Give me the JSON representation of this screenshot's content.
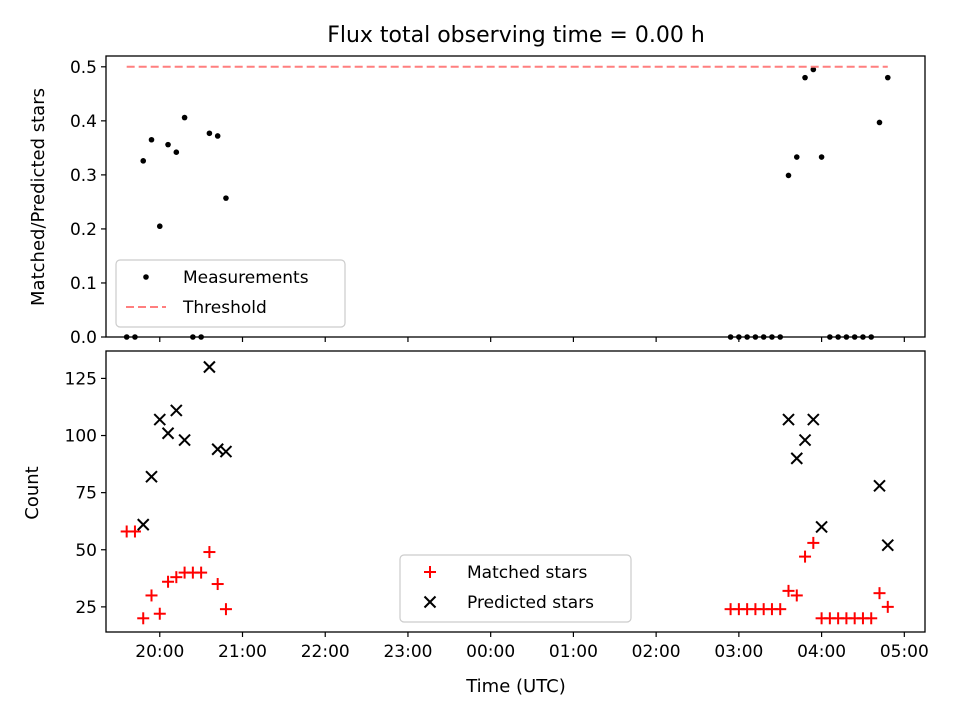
{
  "chart_data": [
    {
      "type": "scatter",
      "title": "Flux total observing time = 0.00 h",
      "xlabel": "",
      "ylabel": "Matched/Predicted stars",
      "ylim": [
        0,
        0.52
      ],
      "yticks": [
        0.0,
        0.1,
        0.2,
        0.3,
        0.4,
        0.5
      ],
      "ytick_labels": [
        "0.0",
        "0.1",
        "0.2",
        "0.3",
        "0.4",
        "0.5"
      ],
      "xlim": [
        "19:21",
        "05:15"
      ],
      "legend_position": "lower-left",
      "series": [
        {
          "name": "Measurements",
          "marker": "dot",
          "color": "#000000",
          "points": [
            [
              "19:36",
              0.0
            ],
            [
              "19:42",
              0.0
            ],
            [
              "19:48",
              0.326
            ],
            [
              "19:54",
              0.365
            ],
            [
              "20:00",
              0.205
            ],
            [
              "20:06",
              0.356
            ],
            [
              "20:12",
              0.342
            ],
            [
              "20:18",
              0.406
            ],
            [
              "20:24",
              0.0
            ],
            [
              "20:30",
              0.0
            ],
            [
              "20:36",
              0.377
            ],
            [
              "20:42",
              0.372
            ],
            [
              "20:48",
              0.257
            ],
            [
              "02:54",
              0.0
            ],
            [
              "03:00",
              0.0
            ],
            [
              "03:06",
              0.0
            ],
            [
              "03:12",
              0.0
            ],
            [
              "03:18",
              0.0
            ],
            [
              "03:24",
              0.0
            ],
            [
              "03:30",
              0.0
            ],
            [
              "03:36",
              0.299
            ],
            [
              "03:42",
              0.333
            ],
            [
              "03:48",
              0.48
            ],
            [
              "03:54",
              0.495
            ],
            [
              "04:00",
              0.333
            ],
            [
              "04:06",
              0.0
            ],
            [
              "04:12",
              0.0
            ],
            [
              "04:18",
              0.0
            ],
            [
              "04:24",
              0.0
            ],
            [
              "04:30",
              0.0
            ],
            [
              "04:36",
              0.0
            ],
            [
              "04:42",
              0.397
            ],
            [
              "04:48",
              0.48
            ]
          ]
        },
        {
          "name": "Threshold",
          "marker": "dashed-line",
          "color": "#ff7f7f",
          "points": [
            [
              "19:36",
              0.5
            ],
            [
              "04:48",
              0.5
            ]
          ]
        }
      ]
    },
    {
      "type": "scatter",
      "title": "",
      "xlabel": "Time (UTC)",
      "ylabel": "Count",
      "ylim": [
        14,
        137
      ],
      "yticks": [
        25,
        50,
        75,
        100,
        125
      ],
      "ytick_labels": [
        "25",
        "50",
        "75",
        "100",
        "125"
      ],
      "xlim": [
        "19:21",
        "05:15"
      ],
      "xticks": [
        "20:00",
        "21:00",
        "22:00",
        "23:00",
        "00:00",
        "01:00",
        "02:00",
        "03:00",
        "04:00",
        "05:00"
      ],
      "xtick_labels": [
        "20:00",
        "21:00",
        "22:00",
        "23:00",
        "00:00",
        "01:00",
        "02:00",
        "03:00",
        "04:00",
        "05:00"
      ],
      "legend_position": "lower-center",
      "series": [
        {
          "name": "Matched stars",
          "marker": "plus",
          "color": "#ff0000",
          "points": [
            [
              "19:36",
              58
            ],
            [
              "19:42",
              58
            ],
            [
              "19:48",
              20
            ],
            [
              "19:54",
              30
            ],
            [
              "20:00",
              22
            ],
            [
              "20:06",
              36
            ],
            [
              "20:12",
              38
            ],
            [
              "20:18",
              40
            ],
            [
              "20:24",
              40
            ],
            [
              "20:30",
              40
            ],
            [
              "20:36",
              49
            ],
            [
              "20:42",
              35
            ],
            [
              "20:48",
              24
            ],
            [
              "02:54",
              24
            ],
            [
              "03:00",
              24
            ],
            [
              "03:06",
              24
            ],
            [
              "03:12",
              24
            ],
            [
              "03:18",
              24
            ],
            [
              "03:24",
              24
            ],
            [
              "03:30",
              24
            ],
            [
              "03:36",
              32
            ],
            [
              "03:42",
              30
            ],
            [
              "03:48",
              47
            ],
            [
              "03:54",
              53
            ],
            [
              "04:00",
              20
            ],
            [
              "04:06",
              20
            ],
            [
              "04:12",
              20
            ],
            [
              "04:18",
              20
            ],
            [
              "04:24",
              20
            ],
            [
              "04:30",
              20
            ],
            [
              "04:36",
              20
            ],
            [
              "04:42",
              31
            ],
            [
              "04:48",
              25
            ]
          ]
        },
        {
          "name": "Predicted stars",
          "marker": "x",
          "color": "#000000",
          "points": [
            [
              "19:48",
              61
            ],
            [
              "19:54",
              82
            ],
            [
              "20:00",
              107
            ],
            [
              "20:06",
              101
            ],
            [
              "20:12",
              111
            ],
            [
              "20:18",
              98
            ],
            [
              "20:36",
              130
            ],
            [
              "20:42",
              94
            ],
            [
              "20:48",
              93
            ],
            [
              "03:36",
              107
            ],
            [
              "03:42",
              90
            ],
            [
              "03:48",
              98
            ],
            [
              "03:54",
              107
            ],
            [
              "04:00",
              60
            ],
            [
              "04:42",
              78
            ],
            [
              "04:48",
              52
            ]
          ]
        }
      ]
    }
  ]
}
